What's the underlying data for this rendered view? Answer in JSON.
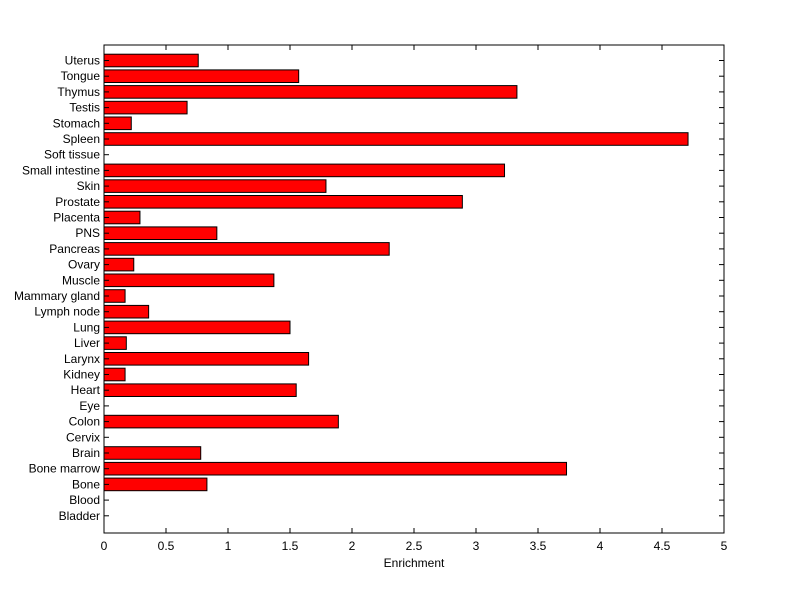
{
  "chart_data": {
    "type": "bar",
    "orientation": "horizontal",
    "xlabel": "Enrichment",
    "ylabel": "",
    "title": "",
    "xlim": [
      0,
      5
    ],
    "xticks": [
      "0",
      "0.5",
      "1",
      "1.5",
      "2",
      "2.5",
      "3",
      "3.5",
      "4",
      "4.5",
      "5"
    ],
    "grid": false,
    "bar_color": "#ff0000",
    "bar_edge_color": "#000000",
    "categories": [
      "Uterus",
      "Tongue",
      "Thymus",
      "Testis",
      "Stomach",
      "Spleen",
      "Soft tissue",
      "Small intestine",
      "Skin",
      "Prostate",
      "Placenta",
      "PNS",
      "Pancreas",
      "Ovary",
      "Muscle",
      "Mammary gland",
      "Lymph node",
      "Lung",
      "Liver",
      "Larynx",
      "Kidney",
      "Heart",
      "Eye",
      "Colon",
      "Cervix",
      "Brain",
      "Bone marrow",
      "Bone",
      "Blood",
      "Bladder"
    ],
    "values": [
      0.76,
      1.57,
      3.33,
      0.67,
      0.22,
      4.71,
      0,
      3.23,
      1.79,
      2.89,
      0.29,
      0.91,
      2.3,
      0.24,
      1.37,
      0.17,
      0.36,
      1.5,
      0.18,
      1.65,
      0.17,
      1.55,
      0,
      1.89,
      0,
      0.78,
      3.73,
      0.83,
      0,
      0
    ]
  }
}
